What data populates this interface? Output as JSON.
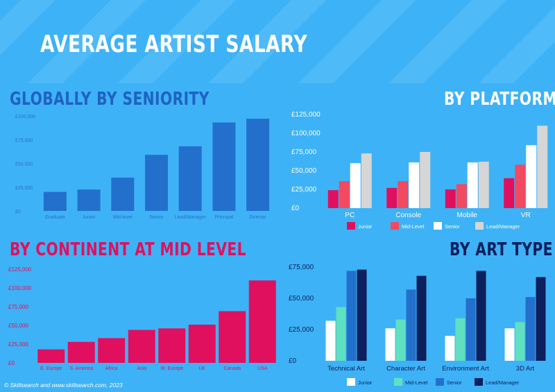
{
  "page": {
    "title": "AVERAGE ARTIST SALARY",
    "footer": "© Skillsearch and www.skillsearch.com, 2023"
  },
  "colors": {
    "background": "#3eb2f6",
    "seniority_bar": "#2270cc",
    "continent_bar": "#e0105e",
    "junior": "#e0105e",
    "mid_level": "#f24a60",
    "senior": "#ffffff",
    "lead_manager": "#d6d6d6",
    "art_junior": "#ffffff",
    "art_mid_level": "#5fe0c0",
    "art_senior": "#2270cc",
    "art_lead_manager": "#0d1f5c"
  },
  "chart_data": [
    {
      "id": "global",
      "type": "bar",
      "title": "GLOBALLY BY SENIORITY",
      "categories": [
        "Graduate",
        "Junior",
        "Mid-level",
        "Senior",
        "Lead/Manager",
        "Principal",
        "Director"
      ],
      "values": [
        20000,
        22500,
        35000,
        59000,
        68000,
        93000,
        97000
      ],
      "ylim": [
        0,
        100000
      ],
      "yticks": [
        "£0",
        "£25,000",
        "£50,000",
        "£75,000",
        "£100,000"
      ],
      "grid": false
    },
    {
      "id": "platform",
      "type": "bar",
      "title": "BY PLATFORM",
      "categories": [
        "PC",
        "Console",
        "Mobile",
        "VR"
      ],
      "series": [
        {
          "name": "Junior",
          "values": [
            24000,
            27000,
            25000,
            40000
          ]
        },
        {
          "name": "Mid-Level",
          "values": [
            36000,
            36000,
            32000,
            58000
          ]
        },
        {
          "name": "Senior",
          "values": [
            60000,
            61000,
            61000,
            84000
          ]
        },
        {
          "name": "Lead/Manager",
          "values": [
            73000,
            75000,
            62000,
            110000
          ]
        }
      ],
      "ylim": [
        0,
        125000
      ],
      "yticks": [
        "£0",
        "£25,000",
        "£50,000",
        "£75,000",
        "£100,000",
        "£125,000"
      ],
      "legend": "bottom",
      "grid": false
    },
    {
      "id": "continent",
      "type": "bar",
      "title": "BY CONTINENT AT MID LEVEL",
      "categories": [
        "E. Europe",
        "S. America",
        "Africa",
        "Asia",
        "W. Europe",
        "UK",
        "Canada",
        "USA"
      ],
      "values": [
        18000,
        28000,
        33000,
        44000,
        46000,
        51000,
        69000,
        110000
      ],
      "ylim": [
        0,
        125000
      ],
      "yticks": [
        "£0",
        "£25,000",
        "£50,000",
        "£75,000",
        "£100,000",
        "£125,000"
      ],
      "grid": false
    },
    {
      "id": "arttype",
      "type": "bar",
      "title": "BY ART TYPE",
      "categories": [
        "Technical Art",
        "Character Art",
        "Environment Art",
        "3D Art"
      ],
      "series": [
        {
          "name": "Junior",
          "values": [
            32000,
            26000,
            20000,
            26000
          ]
        },
        {
          "name": "Mid-Level",
          "values": [
            43000,
            33000,
            34000,
            31000
          ]
        },
        {
          "name": "Senior",
          "values": [
            72000,
            57000,
            50000,
            51000
          ]
        },
        {
          "name": "Lead/Manager",
          "values": [
            73000,
            68000,
            72000,
            67000
          ]
        }
      ],
      "ylim": [
        0,
        75000
      ],
      "yticks": [
        "£0",
        "£25,000",
        "£50,000",
        "£75,000"
      ],
      "legend": "bottom",
      "grid": false
    }
  ]
}
